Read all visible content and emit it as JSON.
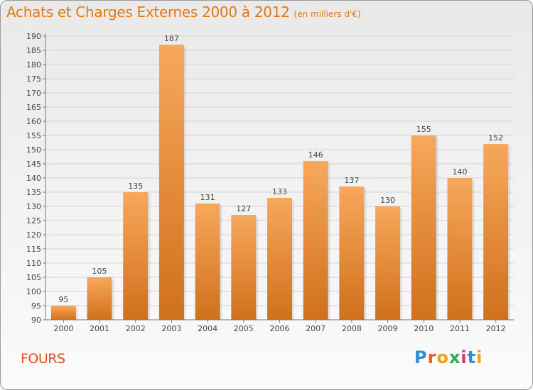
{
  "header": {
    "title": "Achats et Charges Externes 2000 à 2012",
    "subtitle": "(en milliers d'€)"
  },
  "footer": {
    "city": "FOURS",
    "logo": "Proxiti"
  },
  "colors": {
    "title": "#e07a10",
    "bar_top": "#f7a85a",
    "bar_bottom": "#d0701c",
    "city": "#e05020"
  },
  "chart_data": {
    "type": "bar",
    "title": "Achats et Charges Externes 2000 à 2012",
    "subtitle": "(en milliers d'€)",
    "categories": [
      "2000",
      "2001",
      "2002",
      "2003",
      "2004",
      "2005",
      "2006",
      "2007",
      "2008",
      "2009",
      "2010",
      "2011",
      "2012"
    ],
    "values": [
      95,
      105,
      135,
      187,
      131,
      127,
      133,
      146,
      137,
      130,
      155,
      140,
      152
    ],
    "ylim": [
      90,
      190
    ],
    "yticks": [
      90,
      95,
      100,
      105,
      110,
      115,
      120,
      125,
      130,
      135,
      140,
      145,
      150,
      155,
      160,
      165,
      170,
      175,
      180,
      185,
      190
    ],
    "grid": true,
    "legend": "none"
  }
}
